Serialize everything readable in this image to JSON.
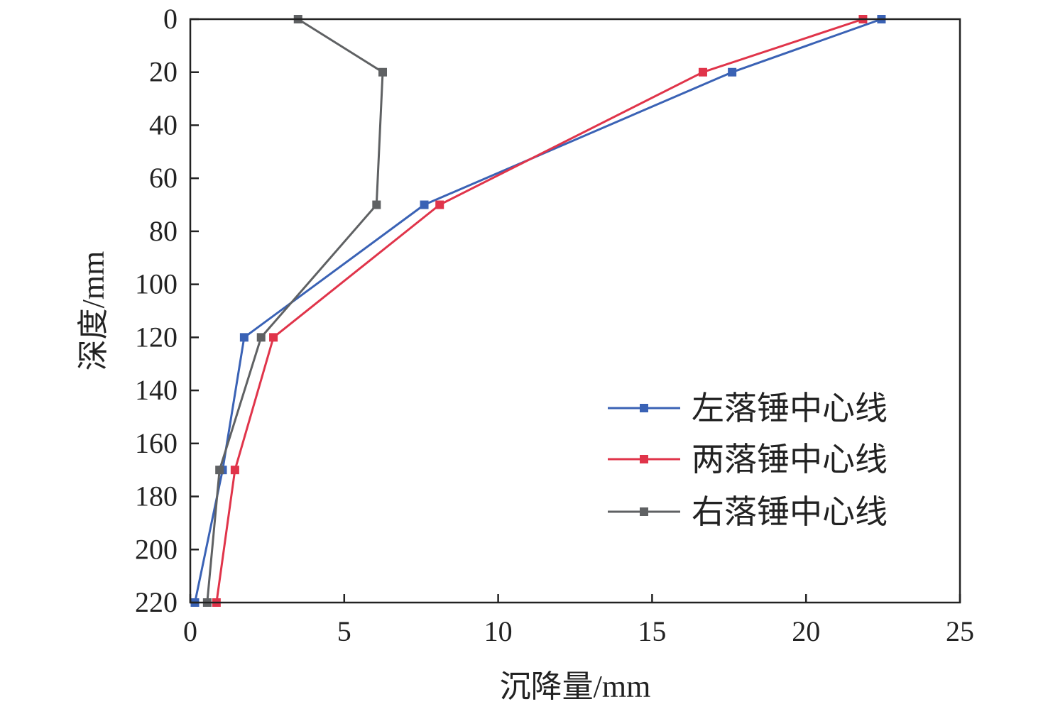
{
  "chart_data": {
    "type": "line",
    "xlabel": "沉降量/mm",
    "ylabel": "深度/mm",
    "xlim": [
      0,
      25
    ],
    "ylim": [
      0,
      220
    ],
    "y_inverted": true,
    "x_ticks": [
      0,
      5,
      10,
      15,
      20,
      25
    ],
    "y_ticks": [
      0,
      20,
      40,
      60,
      80,
      100,
      120,
      140,
      160,
      180,
      200,
      220
    ],
    "legend_position": "lower-right",
    "grid": false,
    "series": [
      {
        "name": "左落锤中心线",
        "color": "#3a62b5",
        "points": [
          {
            "x": 22.45,
            "y": 0
          },
          {
            "x": 17.6,
            "y": 20
          },
          {
            "x": 7.6,
            "y": 70
          },
          {
            "x": 1.75,
            "y": 120
          },
          {
            "x": 1.05,
            "y": 170
          },
          {
            "x": 0.15,
            "y": 220
          }
        ]
      },
      {
        "name": "两落锤中心线",
        "color": "#e0344a",
        "points": [
          {
            "x": 21.85,
            "y": 0
          },
          {
            "x": 16.65,
            "y": 20
          },
          {
            "x": 8.1,
            "y": 70
          },
          {
            "x": 2.7,
            "y": 120
          },
          {
            "x": 1.45,
            "y": 170
          },
          {
            "x": 0.85,
            "y": 220
          }
        ]
      },
      {
        "name": "右落锤中心线",
        "color": "#5f6163",
        "points": [
          {
            "x": 3.5,
            "y": 0
          },
          {
            "x": 6.25,
            "y": 20
          },
          {
            "x": 6.05,
            "y": 70
          },
          {
            "x": 2.3,
            "y": 120
          },
          {
            "x": 0.95,
            "y": 170
          },
          {
            "x": 0.55,
            "y": 220
          }
        ]
      }
    ]
  }
}
